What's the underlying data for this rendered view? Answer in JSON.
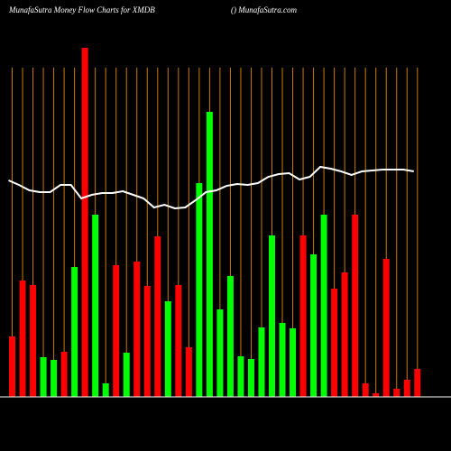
{
  "chart_data": {
    "type": "bar",
    "title": "MunafaSutra  Money Flow  Charts for XMDB",
    "subtitle": "() MunafaSutra.com",
    "categories": [
      null,
      null,
      null,
      null,
      null,
      null,
      null,
      null,
      null,
      null,
      null,
      null,
      null,
      null,
      null,
      null,
      null,
      null,
      null,
      null,
      null,
      null,
      null,
      null,
      null,
      null,
      null,
      null,
      null,
      null,
      null,
      null,
      null,
      null,
      null,
      null,
      null,
      null,
      null,
      null
    ],
    "bars": {
      "values": [
        67,
        129,
        124,
        44,
        41,
        50,
        144,
        387,
        202,
        15,
        146,
        49,
        150,
        123,
        178,
        106,
        124,
        55,
        237,
        316,
        97,
        134,
        45,
        42,
        77,
        179,
        82,
        76,
        179,
        158,
        202,
        120,
        138,
        202,
        15,
        4,
        153,
        9,
        19,
        31
      ],
      "colors": [
        "#ff0000",
        "#ff0000",
        "#ff0000",
        "#00ff00",
        "#00ff00",
        "#ff0000",
        "#00ff00",
        "#ff0000",
        "#00ff00",
        "#00ff00",
        "#ff0000",
        "#00ff00",
        "#ff0000",
        "#ff0000",
        "#ff0000",
        "#00ff00",
        "#ff0000",
        "#ff0000",
        "#00ff00",
        "#00ff00",
        "#00ff00",
        "#00ff00",
        "#00ff00",
        "#00ff00",
        "#00ff00",
        "#00ff00",
        "#00ff00",
        "#00ff00",
        "#ff0000",
        "#00ff00",
        "#00ff00",
        "#ff0000",
        "#ff0000",
        "#ff0000",
        "#ff0000",
        "#ff0000",
        "#ff0000",
        "#ff0000",
        "#ff0000",
        "#ff0000"
      ]
    },
    "line": {
      "color": "#ffffff",
      "values": [
        240,
        235,
        229,
        227,
        227,
        235,
        235,
        220,
        224,
        226,
        226,
        228,
        224,
        220,
        210,
        213,
        209,
        210,
        218,
        227,
        229,
        234,
        236,
        235,
        237,
        244,
        247,
        248,
        241,
        244,
        255,
        253,
        250,
        246,
        250,
        251,
        252,
        252,
        252,
        250
      ]
    },
    "ylim": [
      0,
      400
    ],
    "grid_color": "#cc7a00"
  }
}
